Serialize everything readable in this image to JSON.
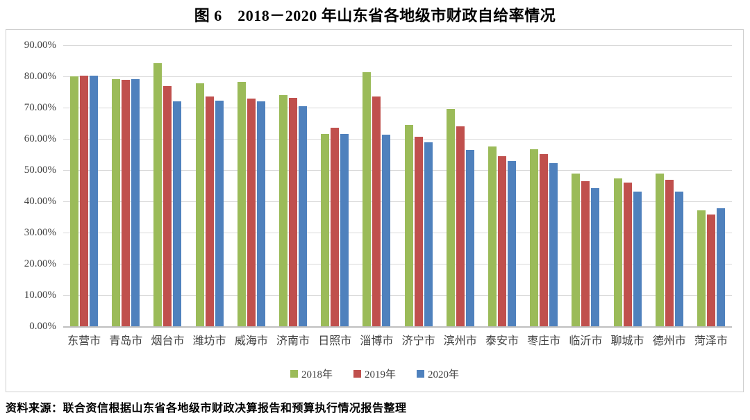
{
  "figure": {
    "title": "图 6　2018－2020 年山东省各地级市财政自给率情况",
    "source_note": "资料来源：联合资信根据山东省各地级市财政决算报告和预算执行情况报告整理"
  },
  "chart_data": {
    "type": "bar",
    "title": "2018－2020 年山东省各地级市财政自给率情况",
    "categories": [
      "东营市",
      "青岛市",
      "烟台市",
      "潍坊市",
      "威海市",
      "济南市",
      "日照市",
      "淄博市",
      "济宁市",
      "滨州市",
      "泰安市",
      "枣庄市",
      "临沂市",
      "聊城市",
      "德州市",
      "菏泽市"
    ],
    "series": [
      {
        "name": "2018年",
        "color": "#9BBB59",
        "values": [
          80.0,
          79.1,
          84.3,
          77.7,
          78.2,
          74.0,
          61.6,
          81.3,
          64.5,
          69.6,
          57.6,
          56.6,
          48.8,
          47.4,
          48.8,
          37.2
        ]
      },
      {
        "name": "2019年",
        "color": "#C0504D",
        "values": [
          80.3,
          78.9,
          76.9,
          73.5,
          72.9,
          73.2,
          63.6,
          73.5,
          60.6,
          63.9,
          54.5,
          55.2,
          46.4,
          45.9,
          47.0,
          35.8
        ]
      },
      {
        "name": "2020年",
        "color": "#4F81BD",
        "values": [
          80.2,
          79.1,
          72.1,
          72.2,
          72.1,
          70.4,
          61.6,
          61.4,
          58.9,
          56.5,
          52.8,
          52.2,
          44.3,
          43.2,
          43.2,
          37.7
        ]
      }
    ],
    "xlabel": "",
    "ylabel": "",
    "ylim": [
      0,
      90
    ],
    "ytick_step": 10,
    "ytick_labels": [
      "90.00%",
      "80.00%",
      "70.00%",
      "60.00%",
      "50.00%",
      "40.00%",
      "30.00%",
      "20.00%",
      "10.00%",
      "0.00%"
    ],
    "grid": true,
    "gridline_color": "#D9D9D9",
    "axis_line_color": "#BFBFBF",
    "legend_position": "bottom"
  }
}
